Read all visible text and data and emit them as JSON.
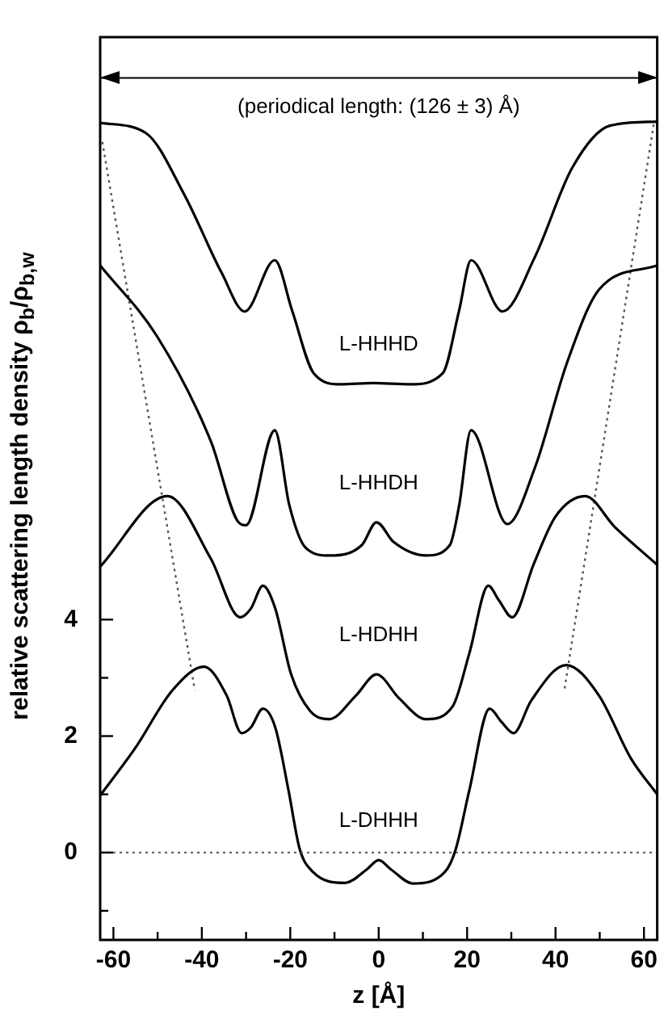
{
  "chart_data": {
    "type": "line",
    "xlabel": "z [Å]",
    "ylabel": "relative scattering length density  ρ$_{b}$/ρ$_{b,w}$",
    "xlim": [
      -63,
      63
    ],
    "ylim": [
      -1.5,
      14
    ],
    "xticks": [
      -60,
      {
        "value": -50,
        "label": null
      },
      -40,
      {
        "value": -30,
        "label": null
      },
      -20,
      {
        "value": -10,
        "label": null
      },
      0,
      {
        "value": 10,
        "label": null
      },
      20,
      {
        "value": 30,
        "label": null
      },
      40,
      {
        "value": 50,
        "label": null
      },
      60
    ],
    "yticks": [
      {
        "value": -1,
        "label": null
      },
      0,
      {
        "value": 1,
        "label": null
      },
      2,
      {
        "value": 3,
        "label": null
      },
      4
    ],
    "grid": false,
    "legend": false,
    "marker": "none",
    "line_style": "solid",
    "ref_lines": [
      {
        "axis": "y",
        "value": 0,
        "line_style": "dotted",
        "color": "#555555"
      },
      {
        "axis": "y",
        "value": 13.3,
        "line_style": "solid",
        "color": "#000000",
        "label": "(periodical length: (126 ± 3) Å)"
      }
    ],
    "series": [
      {
        "name": "L-HHHD",
        "color": "#000000",
        "x": [
          -63,
          -52.6,
          -44,
          -35.5,
          -30.3,
          -23.5,
          -19.6,
          -14.7,
          -8.6,
          -1.3,
          7.2,
          14.5,
          18.2,
          20.9,
          28,
          35.3,
          43.8,
          52.3,
          63
        ],
        "values": [
          12.53,
          12.35,
          11.3,
          9.95,
          9.29,
          10.17,
          9.31,
          8.23,
          8.04,
          8.06,
          8.04,
          8.23,
          9.31,
          10.17,
          9.29,
          10.22,
          11.76,
          12.48,
          12.55
        ]
      },
      {
        "name": "L-HHDH",
        "color": "#000000",
        "x": [
          -63,
          -50.1,
          -37.9,
          -31.9,
          -30,
          -23.5,
          -20.2,
          -16.6,
          -11.1,
          -3.8,
          -0.5,
          3.4,
          10.7,
          16.1,
          18.2,
          20.9,
          29.1,
          35.3,
          42.6,
          49.9,
          63
        ],
        "values": [
          10.08,
          8.86,
          7.05,
          5.69,
          5.62,
          7.25,
          5.96,
          5.24,
          5.1,
          5.28,
          5.67,
          5.33,
          5.1,
          5.28,
          5.96,
          7.25,
          5.64,
          6.6,
          8.41,
          9.67,
          10.08
        ]
      },
      {
        "name": "L-HDHH",
        "color": "#000000",
        "x": [
          -63,
          -47.8,
          -38,
          -31.3,
          -28.9,
          -26.2,
          -23.4,
          -19.8,
          -15.5,
          -11.2,
          -5.1,
          -0.5,
          4.6,
          10.7,
          16.8,
          20.5,
          24.8,
          27.2,
          30.2,
          35.1,
          40,
          46.7,
          53.4,
          63
        ],
        "values": [
          4.91,
          6.12,
          5.05,
          4.04,
          4.19,
          4.58,
          4.19,
          3.06,
          2.43,
          2.29,
          2.7,
          3.06,
          2.65,
          2.29,
          2.52,
          3.42,
          4.58,
          4.33,
          4.04,
          4.96,
          5.77,
          6.12,
          5.59,
          4.94
        ]
      },
      {
        "name": "L-DHHH",
        "color": "#000000",
        "x": [
          -63,
          -55.1,
          -46.6,
          -39.5,
          -34.4,
          -31,
          -28.9,
          -26.2,
          -23.4,
          -20.4,
          -17.9,
          -14.9,
          -7.6,
          -2.7,
          0,
          2.8,
          7.7,
          15,
          17.4,
          20.5,
          25.1,
          27.8,
          30.5,
          34.5,
          42.4,
          49.8,
          57.1,
          63
        ],
        "values": [
          0.98,
          1.79,
          2.79,
          3.19,
          2.7,
          2.05,
          2.15,
          2.47,
          2.15,
          1.07,
          0.07,
          -0.33,
          -0.52,
          -0.29,
          -0.13,
          -0.29,
          -0.53,
          -0.33,
          0.05,
          1.07,
          2.47,
          2.24,
          2.05,
          2.61,
          3.22,
          2.7,
          1.61,
          1
        ]
      },
      {
        "color": "#555555",
        "line_style": "dotted",
        "x": [
          -62.5,
          -41.6
        ],
        "values": [
          12.2,
          2.79
        ]
      },
      {
        "color": "#555555",
        "line_style": "dotted",
        "x": [
          62.2,
          42
        ],
        "values": [
          12.5,
          2.79
        ]
      }
    ]
  }
}
